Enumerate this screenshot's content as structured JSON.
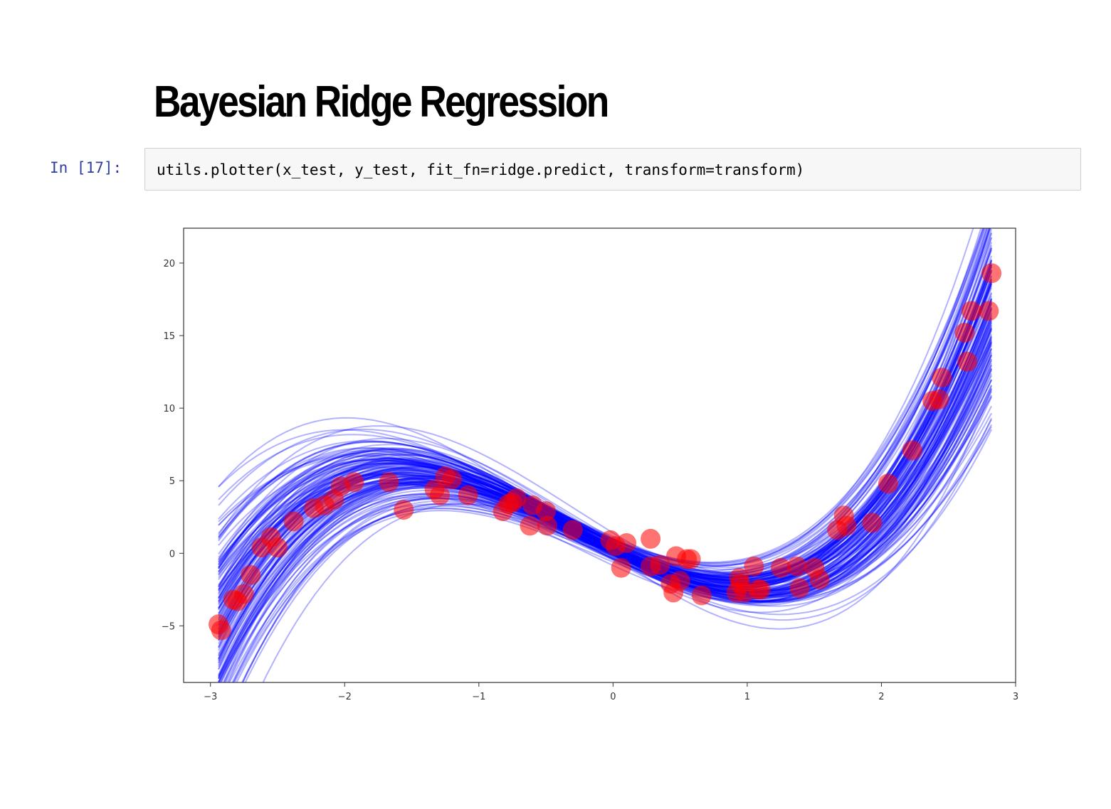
{
  "notebook": {
    "heading": "Bayesian Ridge Regression",
    "cell": {
      "prompt": "In [17]:",
      "code": "utils.plotter(x_test, y_test, fit_fn=ridge.predict, transform=transform)"
    }
  },
  "chart_data": {
    "type": "scatter",
    "title": "",
    "xlabel": "",
    "ylabel": "",
    "xlim": [
      -3.2,
      3.0
    ],
    "ylim": [
      -8.9,
      22.4
    ],
    "xticks": [
      -3,
      -2,
      -1,
      0,
      1,
      2,
      3
    ],
    "yticks": [
      -5,
      0,
      5,
      10,
      15,
      20
    ],
    "xtick_labels": [
      "−3",
      "−2",
      "−1",
      "0",
      "1",
      "2",
      "3"
    ],
    "ytick_labels": [
      "−5",
      "0",
      "5",
      "10",
      "15",
      "20"
    ],
    "grid": false,
    "points_color": "#ff0000",
    "curves_color": "#0000ff",
    "points": {
      "x": [
        -2.94,
        -2.92,
        -2.83,
        -2.8,
        -2.75,
        -2.7,
        -2.62,
        -2.55,
        -2.5,
        -2.38,
        -2.23,
        -2.15,
        -2.08,
        -2.03,
        -1.93,
        -1.67,
        -1.56,
        -1.33,
        -1.29,
        -1.25,
        -1.2,
        -1.08,
        -0.82,
        -0.78,
        -0.75,
        -0.72,
        -0.6,
        -0.62,
        -0.5,
        -0.49,
        -0.3,
        -0.02,
        0.02,
        0.06,
        0.1,
        0.28,
        0.28,
        0.35,
        0.43,
        0.45,
        0.47,
        0.5,
        0.55,
        0.58,
        0.66,
        0.92,
        0.94,
        0.95,
        0.98,
        1.05,
        1.08,
        1.1,
        1.25,
        1.37,
        1.39,
        1.5,
        1.54,
        1.67,
        1.72,
        1.74,
        1.93,
        2.05,
        2.23,
        2.38,
        2.43,
        2.45,
        2.62,
        2.64,
        2.67,
        2.8,
        2.82
      ],
      "y": [
        -4.9,
        -5.3,
        -3.2,
        -3.3,
        -2.8,
        -1.5,
        0.4,
        1.1,
        0.4,
        2.2,
        3.1,
        3.3,
        3.7,
        4.6,
        4.9,
        4.9,
        3.0,
        4.4,
        4.0,
        5.3,
        5.1,
        4.0,
        2.9,
        3.4,
        3.5,
        3.8,
        3.3,
        1.9,
        2.9,
        1.9,
        1.6,
        0.9,
        0.5,
        -1.0,
        0.7,
        1.0,
        -0.9,
        -0.8,
        -2.1,
        -2.7,
        -0.2,
        -1.9,
        -0.4,
        -0.4,
        -2.9,
        -2.7,
        -1.7,
        -2.1,
        -2.7,
        -0.9,
        -2.5,
        -2.5,
        -1.0,
        -0.9,
        -2.4,
        -1.0,
        -1.8,
        1.6,
        2.6,
        1.9,
        2.1,
        4.8,
        7.1,
        10.5,
        10.6,
        12.1,
        15.2,
        13.2,
        16.7,
        16.7,
        19.3
      ]
    },
    "curves": {
      "count": 150,
      "x_range": [
        -2.94,
        2.82
      ],
      "mean_coefficients": [
        0.32,
        -4.45,
        0.85,
        1.0
      ],
      "coefficient_std": [
        0.4,
        0.6,
        0.25,
        0.12
      ]
    }
  }
}
